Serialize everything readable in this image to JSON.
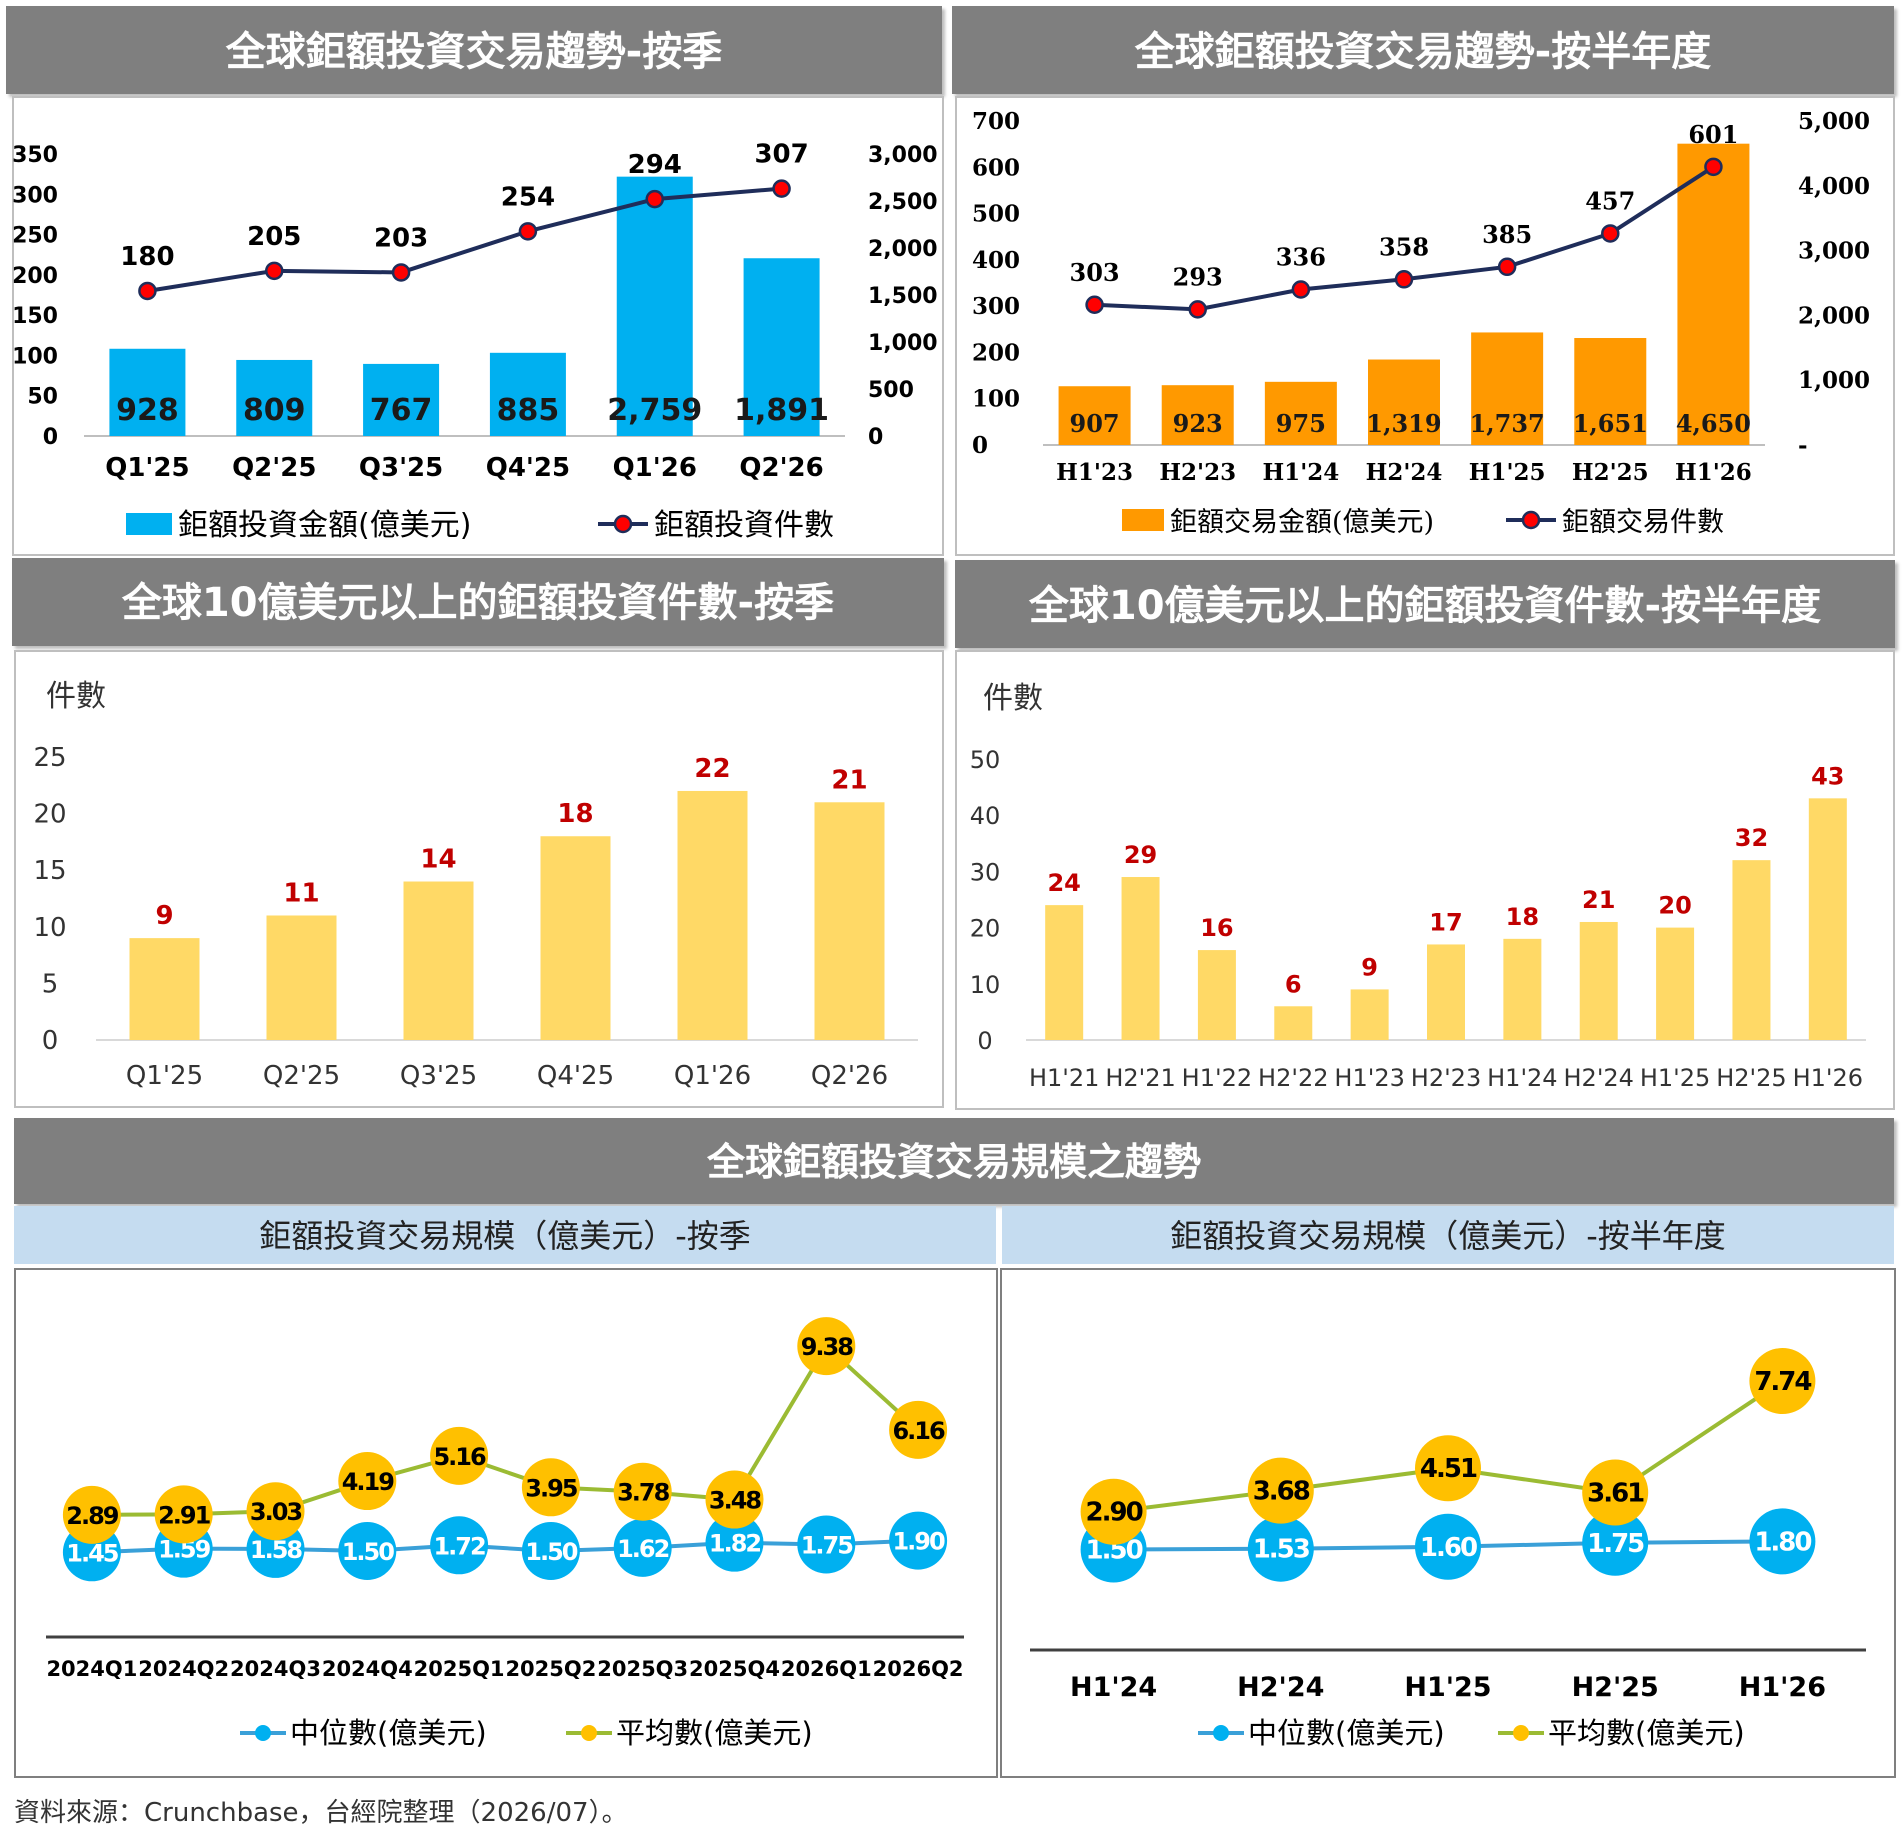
{
  "headers": {
    "p1": "全球鉅額投資交易趨勢-按季",
    "p2": "全球鉅額投資交易趨勢-按半年度",
    "p3": "全球10億美元以上的鉅額投資件數-按季",
    "p4": "全球10億美元以上的鉅額投資件數-按半年度",
    "bottom": "全球鉅額投資交易規模之趨勢",
    "p5": "鉅額投資交易規模（億美元）-按季",
    "p6": "鉅額投資交易規模（億美元）-按半年度"
  },
  "source": "資料來源：Crunchbase，台經院整理（2026/07）。",
  "chart_data": [
    {
      "type": "bar",
      "id": "p1",
      "categories": [
        "Q1'25",
        "Q2'25",
        "Q3'25",
        "Q4'25",
        "Q1'26",
        "Q2'26"
      ],
      "series": [
        {
          "name": "鉅額投資金額(億美元)",
          "type": "bar",
          "axis": "right",
          "values": [
            928,
            809,
            767,
            885,
            2759,
            1891
          ],
          "labels": [
            "928",
            "809",
            "767",
            "885",
            "2,759",
            "1,891"
          ],
          "color": "#00b0f0"
        },
        {
          "name": "鉅額投資件數",
          "type": "line",
          "axis": "left",
          "values": [
            180,
            205,
            203,
            254,
            294,
            307
          ],
          "labels": [
            "180",
            "205",
            "203",
            "254",
            "294",
            "307"
          ],
          "color": "#1f2d5a",
          "marker": "#ff0000"
        }
      ],
      "left_axis": {
        "ticks": [
          "0",
          "50",
          "100",
          "150",
          "200",
          "250",
          "300",
          "350"
        ],
        "range": [
          0,
          350
        ]
      },
      "right_axis": {
        "ticks": [
          "0",
          "500",
          "1,000",
          "1,500",
          "2,000",
          "2,500",
          "3,000"
        ],
        "range": [
          0,
          3000
        ]
      },
      "legend": "bottom"
    },
    {
      "type": "bar",
      "id": "p2",
      "categories": [
        "H1'23",
        "H2'23",
        "H1'24",
        "H2'24",
        "H1'25",
        "H2'25",
        "H1'26"
      ],
      "series": [
        {
          "name": "鉅額交易金額(億美元)",
          "type": "bar",
          "axis": "right",
          "values": [
            907,
            923,
            975,
            1319,
            1737,
            1651,
            4650
          ],
          "labels": [
            "907",
            "923",
            "975",
            "1,319",
            "1,737",
            "1,651",
            "4,650"
          ],
          "color": "#ff9900"
        },
        {
          "name": "鉅額交易件數",
          "type": "line",
          "axis": "left",
          "values": [
            303,
            293,
            336,
            358,
            385,
            457,
            601
          ],
          "labels": [
            "303",
            "293",
            "336",
            "358",
            "385",
            "457",
            "601"
          ],
          "color": "#1f2d5a",
          "marker": "#ff0000"
        }
      ],
      "left_axis": {
        "ticks": [
          "0",
          "100",
          "200",
          "300",
          "400",
          "500",
          "600",
          "700"
        ],
        "range": [
          0,
          700
        ]
      },
      "right_axis": {
        "ticks": [
          "-",
          "1,000",
          "2,000",
          "3,000",
          "4,000",
          "5,000"
        ],
        "range": [
          0,
          5000
        ]
      },
      "legend": "bottom"
    },
    {
      "type": "bar",
      "id": "p3",
      "ylabel": "件數",
      "categories": [
        "Q1'25",
        "Q2'25",
        "Q3'25",
        "Q4'25",
        "Q1'26",
        "Q2'26"
      ],
      "values": [
        9,
        11,
        14,
        18,
        22,
        21
      ],
      "yticks": [
        "0",
        "5",
        "10",
        "15",
        "20",
        "25"
      ],
      "ylim": [
        0,
        25
      ],
      "color": "#ffd966",
      "label_color": "#c00000"
    },
    {
      "type": "bar",
      "id": "p4",
      "ylabel": "件數",
      "categories": [
        "H1'21",
        "H2'21",
        "H1'22",
        "H2'22",
        "H1'23",
        "H2'23",
        "H1'24",
        "H2'24",
        "H1'25",
        "H2'25",
        "H1'26"
      ],
      "values": [
        24,
        29,
        16,
        6,
        9,
        17,
        18,
        21,
        20,
        32,
        43
      ],
      "yticks": [
        "0",
        "10",
        "20",
        "30",
        "40",
        "50"
      ],
      "ylim": [
        0,
        50
      ],
      "color": "#ffd966",
      "label_color": "#c00000"
    },
    {
      "type": "line",
      "id": "p5",
      "categories": [
        "2024Q1",
        "2024Q2",
        "2024Q3",
        "2024Q4",
        "2025Q1",
        "2025Q2",
        "2025Q3",
        "2025Q4",
        "2026Q1",
        "2026Q2"
      ],
      "series": [
        {
          "name": "中位數(億美元)",
          "values": [
            1.45,
            1.59,
            1.58,
            1.5,
            1.72,
            1.5,
            1.62,
            1.82,
            1.75,
            1.9
          ],
          "labels": [
            "1.45",
            "1.59",
            "1.58",
            "1.50",
            "1.72",
            "1.50",
            "1.62",
            "1.82",
            "1.75",
            "1.90"
          ],
          "line_color": "#3aa0d8",
          "marker": "#00b0f0",
          "text_color": "#ffffff"
        },
        {
          "name": "平均數(億美元)",
          "values": [
            2.89,
            2.91,
            3.03,
            4.19,
            5.16,
            3.95,
            3.78,
            3.48,
            9.38,
            6.16
          ],
          "labels": [
            "2.89",
            "2.91",
            "3.03",
            "4.19",
            "5.16",
            "3.95",
            "3.78",
            "3.48",
            "9.38",
            "6.16"
          ],
          "line_color": "#9bbb33",
          "marker": "#ffc000",
          "text_color": "#000000"
        }
      ],
      "ylim": [
        0,
        10.5
      ],
      "legend": "bottom"
    },
    {
      "type": "line",
      "id": "p6",
      "categories": [
        "H1'24",
        "H2'24",
        "H1'25",
        "H2'25",
        "H1'26"
      ],
      "series": [
        {
          "name": "中位數(億美元)",
          "values": [
            1.5,
            1.53,
            1.6,
            1.75,
            1.8
          ],
          "labels": [
            "1.50",
            "1.53",
            "1.60",
            "1.75",
            "1.80"
          ],
          "line_color": "#3aa0d8",
          "marker": "#00b0f0",
          "text_color": "#ffffff"
        },
        {
          "name": "平均數(億美元)",
          "values": [
            2.9,
            3.68,
            4.51,
            3.61,
            7.74
          ],
          "labels": [
            "2.90",
            "3.68",
            "4.51",
            "3.61",
            "7.74"
          ],
          "line_color": "#9bbb33",
          "marker": "#ffc000",
          "text_color": "#000000"
        }
      ],
      "ylim": [
        0,
        9
      ],
      "legend": "bottom"
    }
  ]
}
